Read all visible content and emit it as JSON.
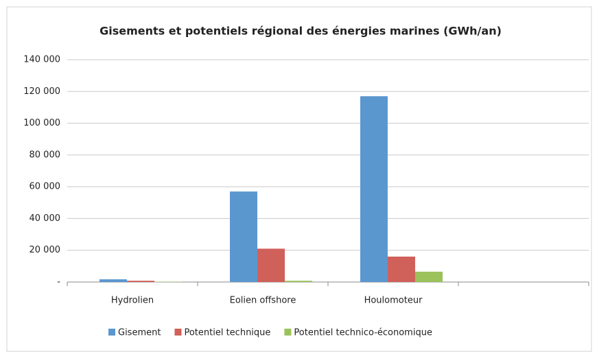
{
  "chart_data": {
    "type": "bar",
    "title": "Gisements et potentiels régional des énergies marines (GWh/an)",
    "categories": [
      "Hydrolien",
      "Eolien offshore",
      "Houlomoteur",
      null
    ],
    "series": [
      {
        "name": "Gisement",
        "color": "#5b97cf",
        "values": [
          1700,
          57000,
          117000,
          null
        ]
      },
      {
        "name": "Potentiel technique",
        "color": "#d0605a",
        "values": [
          800,
          21000,
          16000,
          null
        ]
      },
      {
        "name": "Potentiel technico-économique",
        "color": "#9bc25b",
        "values": [
          200,
          800,
          6500,
          null
        ]
      }
    ],
    "ylim": [
      0,
      140000
    ],
    "yticks": [
      {
        "value": 0,
        "label": "-"
      },
      {
        "value": 20000,
        "label": "20 000"
      },
      {
        "value": 40000,
        "label": "40 000"
      },
      {
        "value": 60000,
        "label": "60 000"
      },
      {
        "value": 80000,
        "label": "80 000"
      },
      {
        "value": 100000,
        "label": "100 000"
      },
      {
        "value": 120000,
        "label": "120 000"
      },
      {
        "value": 140000,
        "label": "140 000"
      }
    ],
    "grid": true,
    "legend": "bottom"
  }
}
